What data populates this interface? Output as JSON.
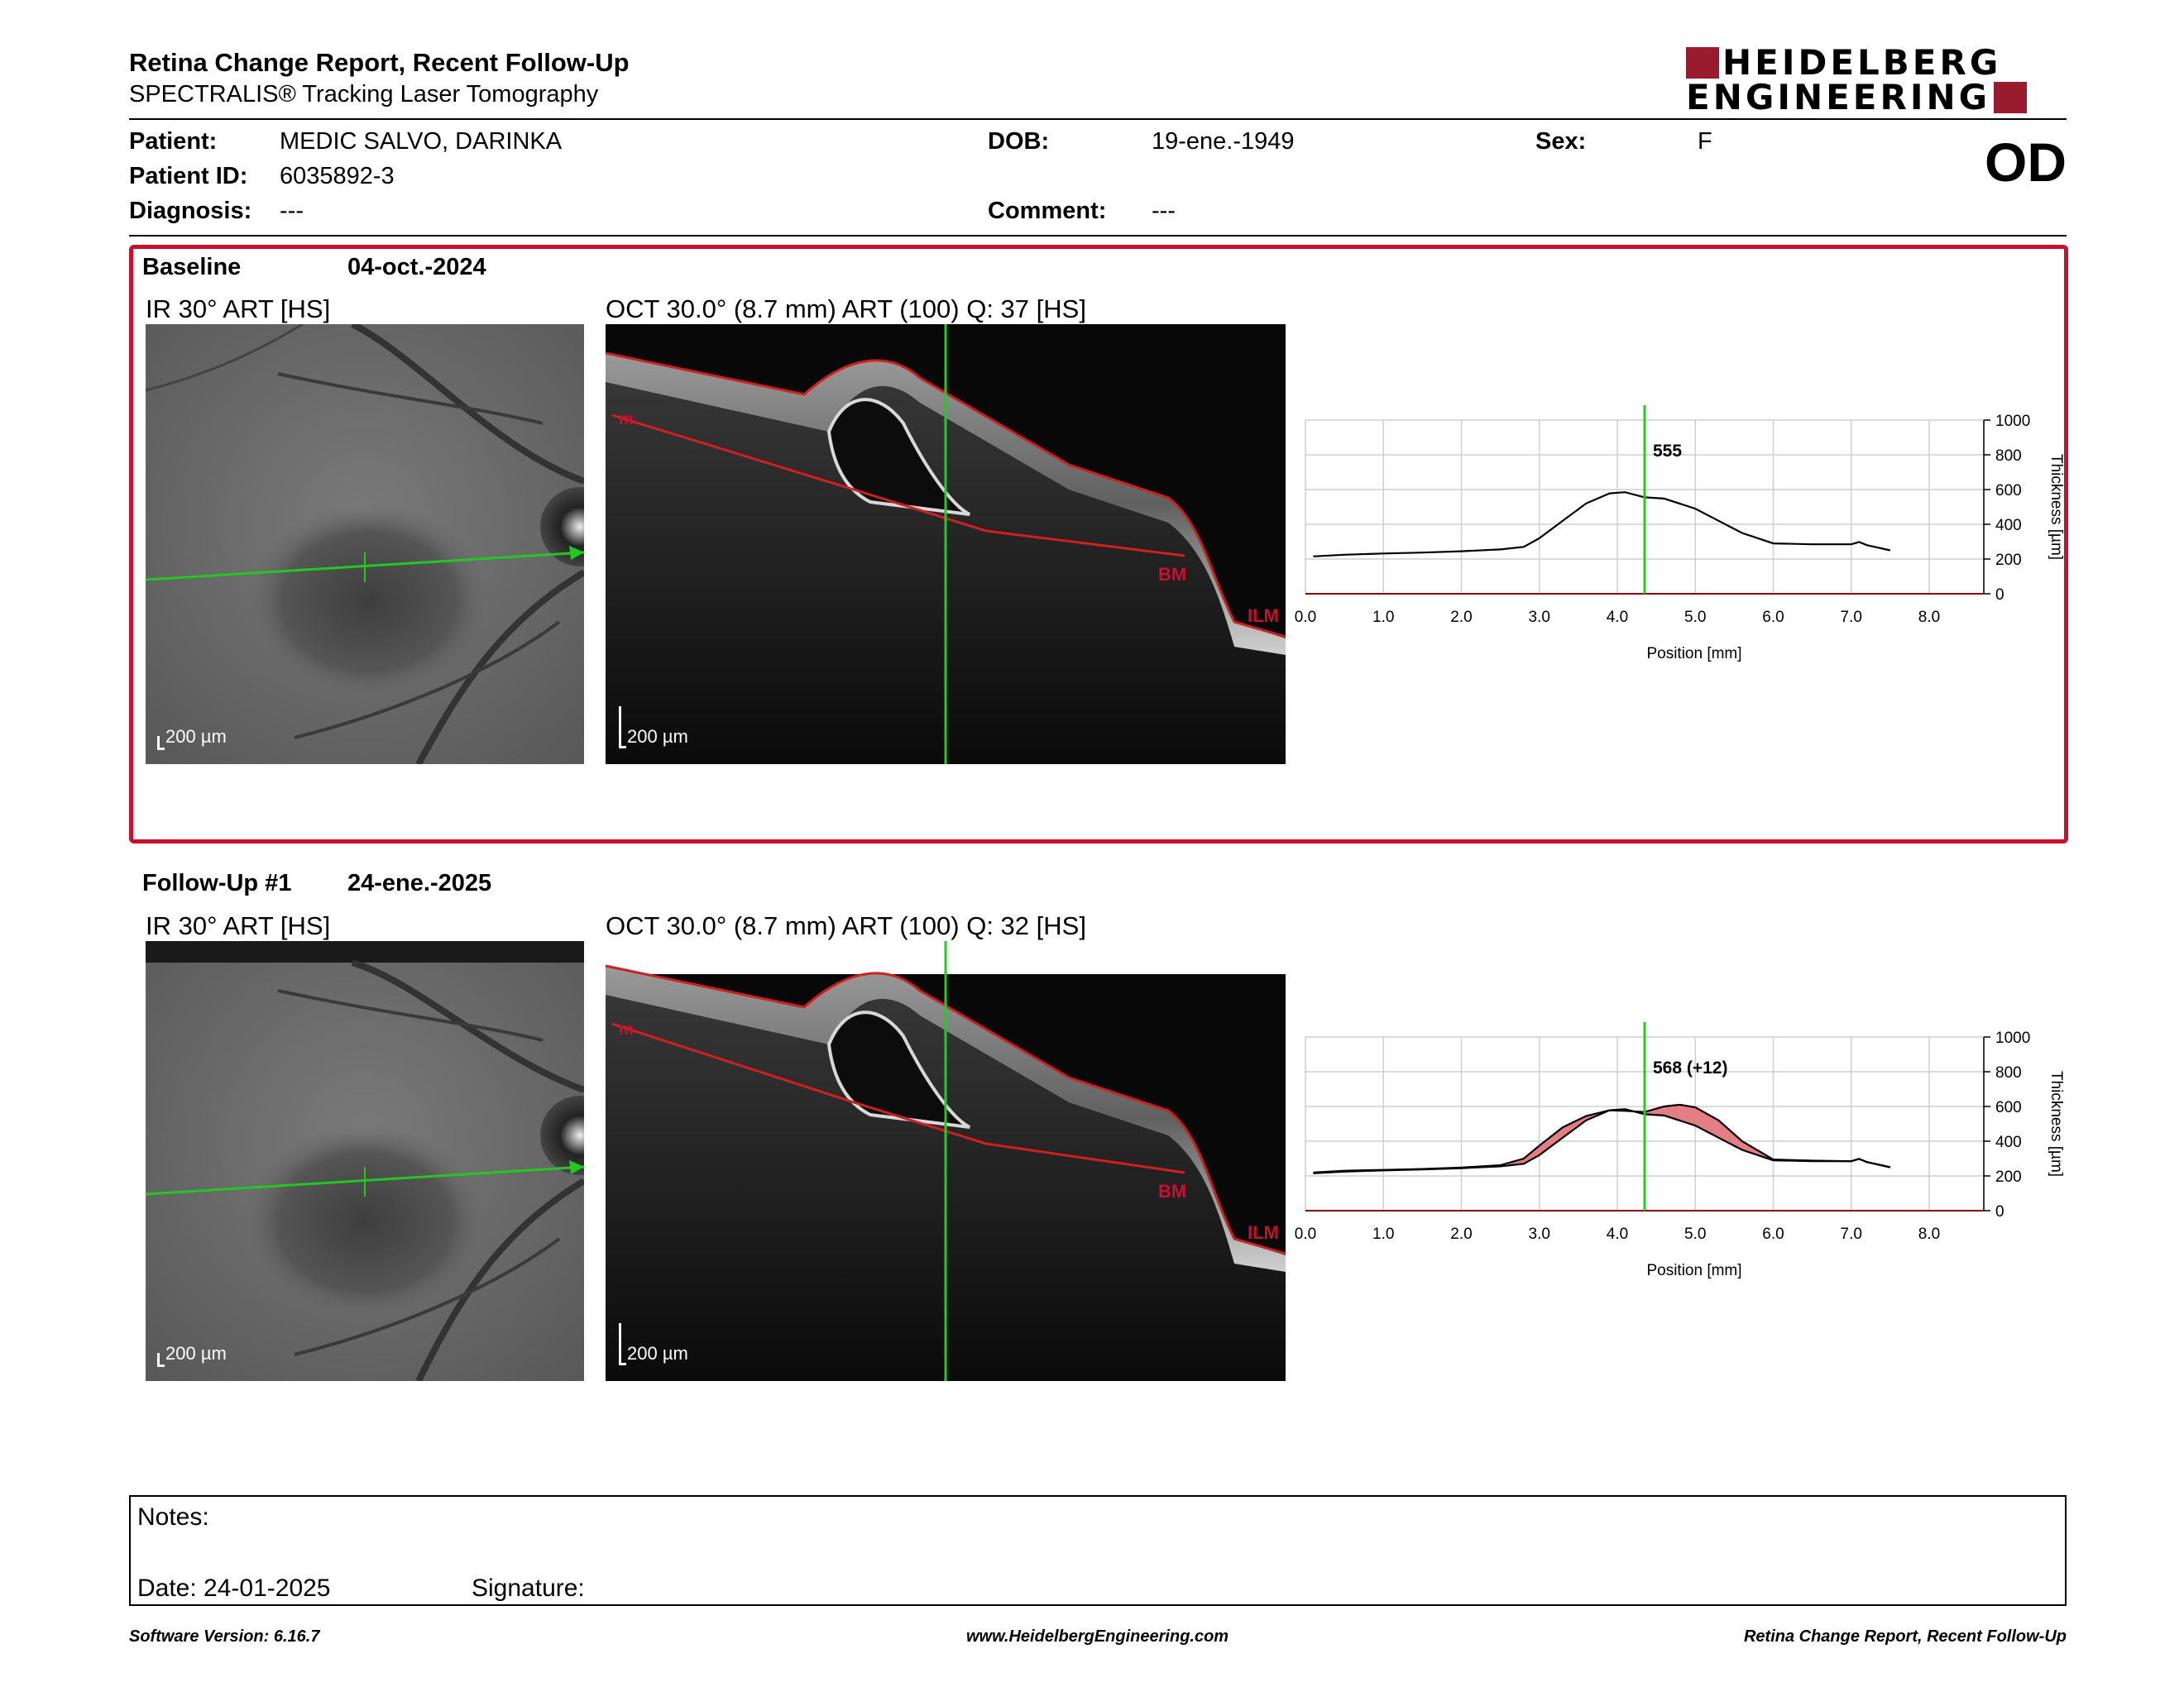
{
  "header": {
    "title": "Retina Change Report, Recent Follow-Up",
    "subtitle": "SPECTRALIS® Tracking Laser Tomography",
    "logo_line1": "HEIDELBERG",
    "logo_line2": "ENGINEERING",
    "eye": "OD"
  },
  "patient": {
    "patient_label": "Patient:",
    "patient_value": "MEDIC SALVO, DARINKA",
    "id_label": "Patient ID:",
    "id_value": "6035892-3",
    "diagnosis_label": "Diagnosis:",
    "diagnosis_value": "---",
    "dob_label": "DOB:",
    "dob_value": "19-ene.-1949",
    "comment_label": "Comment:",
    "comment_value": "---",
    "sex_label": "Sex:",
    "sex_value": "F"
  },
  "baseline": {
    "label": "Baseline",
    "date": "04-oct.-2024",
    "ir_title": "IR 30° ART [HS]",
    "oct_title": "OCT 30.0° (8.7 mm) ART (100) Q: 37 [HS]",
    "ir_scale": "200 µm",
    "oct_scale": "200 µm",
    "layer_labels": {
      "top_left": "m",
      "bm": "BM",
      "ilm": "ILM"
    }
  },
  "followup": {
    "label": "Follow-Up #1",
    "date": "24-ene.-2025",
    "ir_title": "IR 30° ART [HS]",
    "oct_title": "OCT 30.0° (8.7 mm) ART (100) Q: 32 [HS]",
    "ir_scale": "200 µm",
    "oct_scale": "200 µm",
    "layer_labels": {
      "top_left": "m",
      "bm": "BM",
      "ilm": "ILM"
    }
  },
  "chart_data": [
    {
      "type": "line",
      "xlabel": "Position [mm]",
      "ylabel": "Thickness [µm]",
      "xlim": [
        0,
        8.7
      ],
      "ylim": [
        0,
        1000
      ],
      "x_ticks": [
        "0.0",
        "1.0",
        "2.0",
        "3.0",
        "4.0",
        "5.0",
        "6.0",
        "7.0",
        "8.0"
      ],
      "y_ticks": [
        "0",
        "200",
        "400",
        "600",
        "800",
        "1000"
      ],
      "grid": true,
      "cursor_x": 4.35,
      "cursor_label": "555",
      "series": [
        {
          "x": [
            0.1,
            0.5,
            1.0,
            1.5,
            2.0,
            2.5,
            2.8,
            3.0,
            3.3,
            3.6,
            3.9,
            4.1,
            4.35,
            4.6,
            5.0,
            5.3,
            5.6,
            6.0,
            6.5,
            7.0,
            7.1,
            7.2,
            7.5
          ],
          "values": [
            215,
            225,
            232,
            237,
            245,
            255,
            270,
            320,
            420,
            520,
            578,
            585,
            555,
            548,
            490,
            420,
            350,
            290,
            285,
            285,
            298,
            280,
            250
          ]
        }
      ]
    },
    {
      "type": "line",
      "xlabel": "Position [mm]",
      "ylabel": "Thickness [µm]",
      "xlim": [
        0,
        8.7
      ],
      "ylim": [
        0,
        1000
      ],
      "x_ticks": [
        "0.0",
        "1.0",
        "2.0",
        "3.0",
        "4.0",
        "5.0",
        "6.0",
        "7.0",
        "8.0"
      ],
      "y_ticks": [
        "0",
        "200",
        "400",
        "600",
        "800",
        "1000"
      ],
      "grid": true,
      "cursor_x": 4.35,
      "cursor_label": "568 (+12)",
      "series": [
        {
          "x": [
            0.1,
            0.5,
            1.0,
            1.5,
            2.0,
            2.5,
            2.8,
            3.0,
            3.3,
            3.6,
            3.9,
            4.1,
            4.35,
            4.6,
            5.0,
            5.3,
            5.6,
            6.0,
            6.5,
            7.0,
            7.1,
            7.2,
            7.5
          ],
          "values": [
            215,
            225,
            232,
            237,
            245,
            255,
            270,
            320,
            420,
            520,
            578,
            585,
            555,
            548,
            490,
            420,
            350,
            290,
            285,
            285,
            298,
            280,
            250
          ]
        },
        {
          "x": [
            0.1,
            0.5,
            1.0,
            1.5,
            2.0,
            2.5,
            2.8,
            3.0,
            3.3,
            3.6,
            3.9,
            4.1,
            4.35,
            4.6,
            4.8,
            5.0,
            5.3,
            5.6,
            6.0,
            6.5,
            7.0,
            7.1,
            7.2,
            7.5
          ],
          "values": [
            220,
            230,
            235,
            240,
            248,
            262,
            300,
            375,
            480,
            545,
            578,
            575,
            568,
            600,
            610,
            595,
            520,
            400,
            295,
            288,
            285,
            298,
            280,
            250
          ]
        }
      ]
    }
  ],
  "notes": {
    "notes_label": "Notes:",
    "date_label": "Date: 24-01-2025",
    "signature_label": "Signature:"
  },
  "footer": {
    "left": "Software Version: 6.16.7",
    "center": "www.HeidelbergEngineering.com",
    "right": "Retina Change Report, Recent Follow-Up"
  },
  "colors": {
    "brand": "#9a1b2e",
    "box_border": "#c8102e",
    "scan_line": "#22c722",
    "cursor": "#22cc22",
    "diff_fill": "#e57d85"
  }
}
